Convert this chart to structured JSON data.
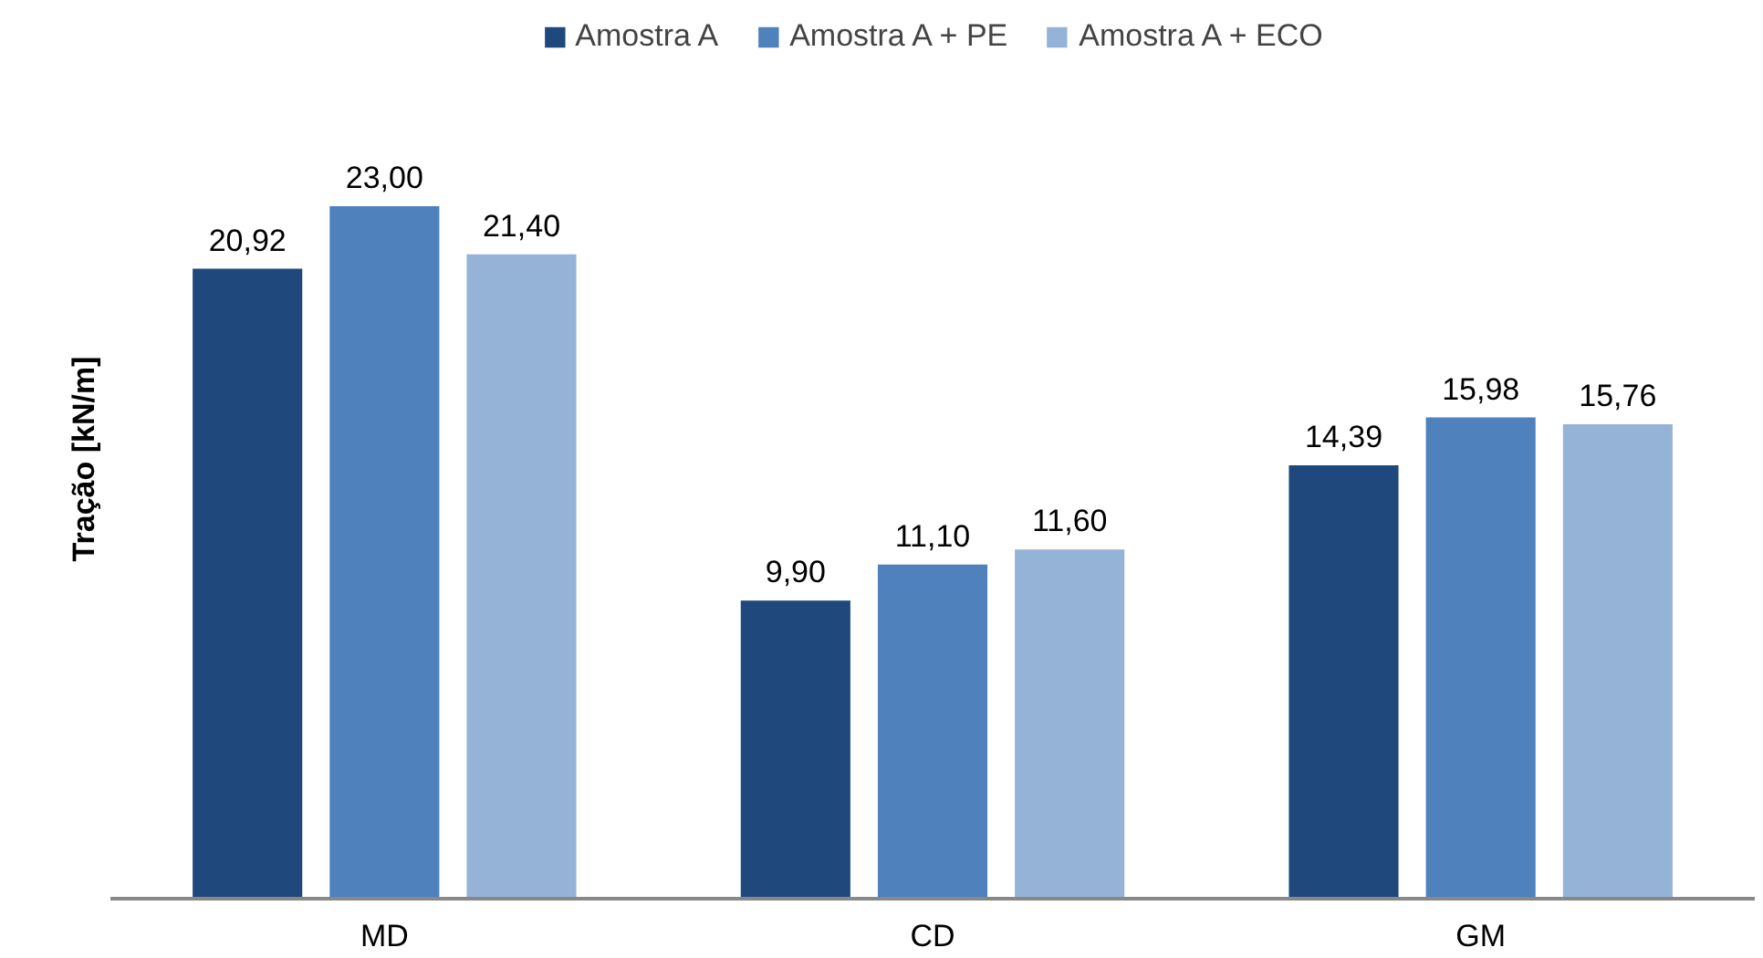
{
  "chart_data": {
    "type": "bar",
    "ylabel": "Tração [kN/m]",
    "categories": [
      "MD",
      "CD",
      "GM"
    ],
    "series": [
      {
        "name": "Amostra A",
        "color": "#1f497d",
        "values": [
          20.92,
          9.9,
          14.39
        ],
        "value_labels": [
          "20,92",
          "9,90",
          "14,39"
        ]
      },
      {
        "name": "Amostra A + PE",
        "color": "#4f81bd",
        "values": [
          23.0,
          11.1,
          15.98
        ],
        "value_labels": [
          "23,00",
          "11,10",
          "15,98"
        ]
      },
      {
        "name": "Amostra A + ECO",
        "color": "#95b3d7",
        "values": [
          21.4,
          11.6,
          15.76
        ],
        "value_labels": [
          "21,40",
          "11,60",
          "15,76"
        ]
      }
    ],
    "legend": "top"
  }
}
